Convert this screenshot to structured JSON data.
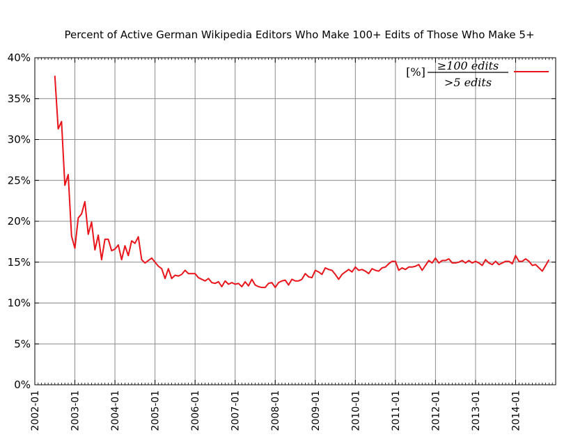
{
  "chart_data": {
    "type": "line",
    "title": "Percent of Active German Wikipedia Editors Who Make 100+ Edits of Those Who Make 5+",
    "xlabel": "",
    "ylabel": "",
    "ylim": [
      0,
      40
    ],
    "xlim": [
      "2002-01",
      "2014-12"
    ],
    "grid": true,
    "legend_position": "top-right",
    "y_tick_labels": [
      "0%",
      "5%",
      "10%",
      "15%",
      "20%",
      "25%",
      "30%",
      "35%",
      "40%"
    ],
    "x_tick_labels": [
      "2002-01",
      "2003-01",
      "2004-01",
      "2005-01",
      "2006-01",
      "2007-01",
      "2008-01",
      "2009-01",
      "2010-01",
      "2011-01",
      "2012-01",
      "2013-01",
      "2014-01"
    ],
    "legend": {
      "bracket": "[%]",
      "numerator": "≥100 edits",
      "denominator": ">5 edits"
    },
    "series": [
      {
        "color": "#e8141a",
        "start": "2002-07",
        "values": [
          37.8,
          31.3,
          32.2,
          24.4,
          25.7,
          18.2,
          16.7,
          20.4,
          20.9,
          22.4,
          18.4,
          19.9,
          16.5,
          18.3,
          15.3,
          17.8,
          17.8,
          16.4,
          16.6,
          17.1,
          15.3,
          17.0,
          15.8,
          17.6,
          17.3,
          18.1,
          15.3,
          14.9,
          15.2,
          15.5,
          15.0,
          14.5,
          14.2,
          13.0,
          14.2,
          13.0,
          13.4,
          13.3,
          13.5,
          14.0,
          13.6,
          13.6,
          13.6,
          13.1,
          12.9,
          12.7,
          13.0,
          12.5,
          12.4,
          12.6,
          12.0,
          12.7,
          12.3,
          12.5,
          12.3,
          12.4,
          12.0,
          12.6,
          12.1,
          12.9,
          12.2,
          12.0,
          11.9,
          11.9,
          12.4,
          12.5,
          11.9,
          12.5,
          12.7,
          12.8,
          12.2,
          12.9,
          12.7,
          12.7,
          12.9,
          13.6,
          13.2,
          13.1,
          14.0,
          13.8,
          13.5,
          14.3,
          14.1,
          14.0,
          13.5,
          12.9,
          13.5,
          13.8,
          14.1,
          13.8,
          14.4,
          14.0,
          14.1,
          13.9,
          13.6,
          14.2,
          14.0,
          13.9,
          14.3,
          14.4,
          14.8,
          15.1,
          15.1,
          14.0,
          14.3,
          14.1,
          14.4,
          14.4,
          14.5,
          14.7,
          14.0,
          14.6,
          15.2,
          14.9,
          15.5,
          14.9,
          15.2,
          15.2,
          15.4,
          14.9,
          14.9,
          15.0,
          15.2,
          14.9,
          15.2,
          14.9,
          15.1,
          14.9,
          14.6,
          15.3,
          14.9,
          14.7,
          15.1,
          14.7,
          14.9,
          15.1,
          15.1,
          14.8,
          15.8,
          15.1,
          15.1,
          15.4,
          15.1,
          14.6,
          14.7,
          14.3,
          13.9,
          14.6,
          15.3
        ]
      }
    ]
  }
}
